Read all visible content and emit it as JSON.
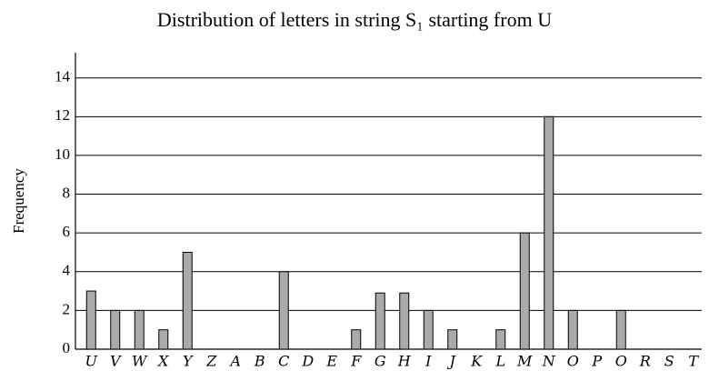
{
  "chart_data": {
    "type": "bar",
    "title": "Distribution of letters in string S₁ starting from U",
    "y_label": "Frequency",
    "categories": [
      "U",
      "V",
      "W",
      "X",
      "Y",
      "Z",
      "A",
      "B",
      "C",
      "D",
      "E",
      "F",
      "G",
      "H",
      "I",
      "J",
      "K",
      "L",
      "M",
      "N",
      "O",
      "P",
      "O",
      "R",
      "S",
      "T"
    ],
    "values": [
      3,
      2,
      2,
      1,
      5,
      0,
      0,
      0,
      4,
      0,
      0,
      1,
      2.9,
      2.9,
      2,
      1,
      0,
      1,
      6,
      12,
      2,
      0,
      2,
      0,
      0,
      0
    ],
    "color": "#aaaaaa",
    "ylim": [
      0,
      15.3
    ],
    "yticks": [
      0,
      2,
      4,
      6,
      8,
      10,
      12,
      14
    ],
    "grid": true
  }
}
